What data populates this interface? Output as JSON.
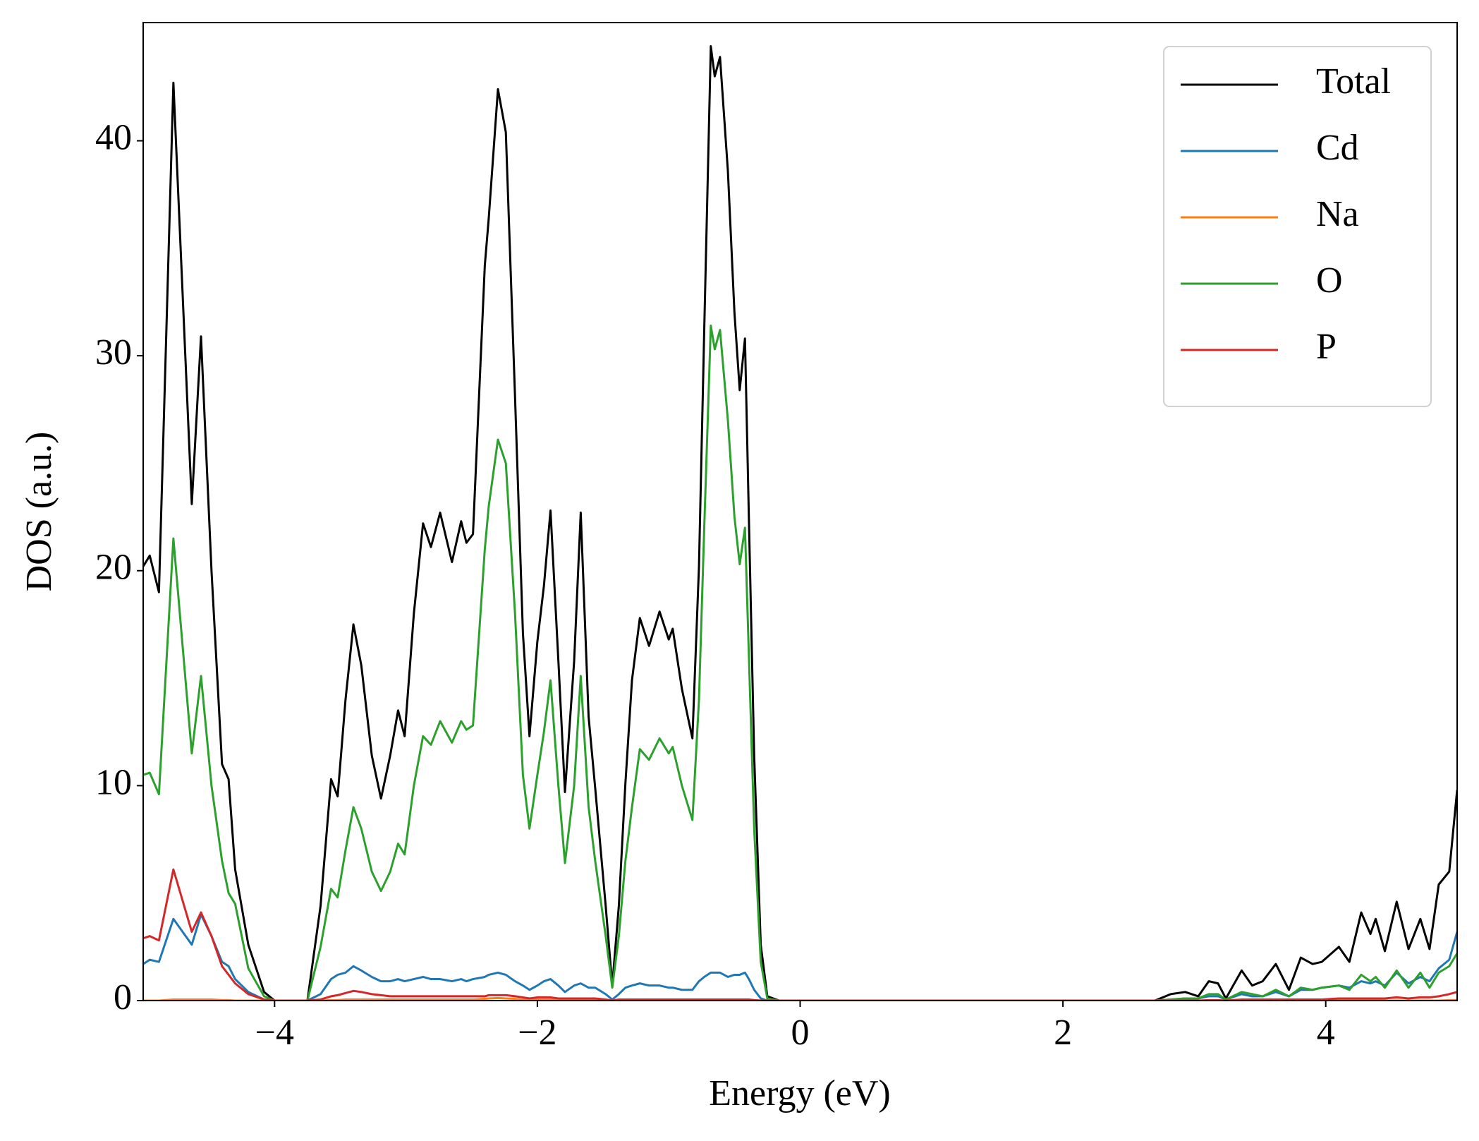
{
  "chart_data": {
    "type": "line",
    "xlabel": "Energy (eV)",
    "ylabel": "DOS (a.u.)",
    "xlim": [
      -5,
      5
    ],
    "ylim": [
      0,
      45.5
    ],
    "xticks": [
      {
        "value": -4,
        "label": "−4"
      },
      {
        "value": -2,
        "label": "−2"
      },
      0,
      2,
      4
    ],
    "yticks": [
      0,
      10,
      20,
      30,
      40
    ],
    "legend": "upper right",
    "grid": false,
    "x": [
      -5.0,
      -4.95,
      -4.88,
      -4.77,
      -4.63,
      -4.56,
      -4.48,
      -4.4,
      -4.35,
      -4.3,
      -4.2,
      -4.08,
      -4.0,
      -3.75,
      -3.65,
      -3.57,
      -3.52,
      -3.46,
      -3.4,
      -3.34,
      -3.26,
      -3.19,
      -3.12,
      -3.06,
      -3.01,
      -2.94,
      -2.87,
      -2.81,
      -2.74,
      -2.65,
      -2.58,
      -2.54,
      -2.49,
      -2.4,
      -2.37,
      -2.3,
      -2.24,
      -2.17,
      -2.11,
      -2.06,
      -2.0,
      -1.95,
      -1.9,
      -1.84,
      -1.79,
      -1.72,
      -1.67,
      -1.61,
      -1.56,
      -1.48,
      -1.43,
      -1.38,
      -1.33,
      -1.28,
      -1.22,
      -1.15,
      -1.07,
      -1.0,
      -0.97,
      -0.9,
      -0.82,
      -0.77,
      -0.73,
      -0.68,
      -0.65,
      -0.61,
      -0.55,
      -0.5,
      -0.46,
      -0.42,
      -0.39,
      -0.35,
      -0.3,
      -0.25,
      -0.16,
      2.7,
      2.82,
      2.93,
      3.03,
      3.11,
      3.18,
      3.24,
      3.36,
      3.44,
      3.52,
      3.62,
      3.72,
      3.81,
      3.9,
      3.97,
      4.1,
      4.18,
      4.27,
      4.34,
      4.38,
      4.45,
      4.54,
      4.63,
      4.72,
      4.79,
      4.86,
      4.94,
      5.0
    ],
    "series": [
      {
        "name": "Total",
        "color": "#000000",
        "values": [
          20.2,
          20.7,
          19.0,
          42.7,
          23.1,
          30.9,
          20,
          11,
          10.3,
          6.1,
          2.6,
          0.4,
          0,
          0,
          4.4,
          10.3,
          9.5,
          14,
          17.5,
          15.6,
          11.4,
          9.4,
          11.4,
          13.5,
          12.3,
          18,
          22.2,
          21.1,
          22.7,
          20.4,
          22.3,
          21.3,
          21.7,
          34.2,
          36.4,
          42.4,
          40.4,
          28.1,
          17.1,
          12.3,
          16.7,
          19.3,
          22.8,
          15.8,
          9.7,
          15.8,
          22.7,
          13.2,
          9.9,
          4.4,
          0.7,
          4.4,
          10.1,
          14.9,
          17.8,
          16.5,
          18.1,
          16.8,
          17.3,
          14.5,
          12.2,
          20.2,
          31.2,
          44.4,
          43.0,
          43.9,
          38.6,
          32,
          28.4,
          30.8,
          22.4,
          11.4,
          2.6,
          0.2,
          0,
          0,
          0.3,
          0.4,
          0.2,
          0.9,
          0.8,
          0.1,
          1.4,
          0.7,
          0.9,
          1.7,
          0.5,
          2.0,
          1.7,
          1.8,
          2.5,
          1.8,
          4.1,
          3.1,
          3.8,
          2.3,
          4.6,
          2.4,
          3.8,
          2.4,
          5.4,
          6.0,
          9.8
        ]
      },
      {
        "name": "Cd",
        "color": "#1f77b4",
        "values": [
          1.7,
          1.9,
          1.8,
          3.8,
          2.6,
          4.0,
          3,
          1.8,
          1.6,
          1.0,
          0.4,
          0.05,
          0,
          0,
          0.3,
          1.0,
          1.2,
          1.3,
          1.6,
          1.4,
          1.1,
          0.9,
          0.9,
          1.0,
          0.9,
          1.0,
          1.1,
          1.0,
          1.0,
          0.9,
          1.0,
          0.9,
          1.0,
          1.1,
          1.2,
          1.3,
          1.2,
          0.9,
          0.7,
          0.5,
          0.7,
          0.9,
          1.0,
          0.7,
          0.4,
          0.7,
          0.8,
          0.6,
          0.6,
          0.3,
          0.05,
          0.3,
          0.6,
          0.7,
          0.8,
          0.7,
          0.7,
          0.6,
          0.6,
          0.5,
          0.5,
          0.9,
          1.1,
          1.3,
          1.3,
          1.3,
          1.1,
          1.2,
          1.2,
          1.3,
          1.0,
          0.5,
          0.1,
          0,
          0,
          0,
          0.05,
          0.1,
          0.1,
          0.2,
          0.2,
          0.05,
          0.3,
          0.2,
          0.2,
          0.4,
          0.2,
          0.5,
          0.5,
          0.6,
          0.7,
          0.6,
          0.9,
          0.8,
          0.9,
          0.7,
          1.3,
          0.8,
          1.1,
          0.9,
          1.5,
          1.9,
          3.2
        ]
      },
      {
        "name": "Na",
        "color": "#ff7f0e",
        "values": [
          0,
          0,
          0,
          0.05,
          0.05,
          0.05,
          0.05,
          0.02,
          0.02,
          0,
          0,
          0,
          0,
          0,
          0,
          0.02,
          0.02,
          0.05,
          0.05,
          0.05,
          0.05,
          0.05,
          0.05,
          0.05,
          0.05,
          0.05,
          0.05,
          0.05,
          0.05,
          0.05,
          0.05,
          0.05,
          0.05,
          0.08,
          0.1,
          0.12,
          0.1,
          0.08,
          0.05,
          0.05,
          0.05,
          0.05,
          0.05,
          0.05,
          0.05,
          0.05,
          0.05,
          0.05,
          0.05,
          0.02,
          0,
          0.02,
          0.05,
          0.05,
          0.05,
          0.05,
          0.05,
          0.05,
          0.05,
          0.05,
          0.05,
          0.05,
          0.05,
          0.05,
          0.05,
          0.05,
          0.05,
          0.05,
          0.05,
          0.05,
          0.02,
          0.02,
          0,
          0,
          0,
          0,
          0,
          0,
          0,
          0,
          0,
          0,
          0,
          0,
          0,
          0,
          0,
          0,
          0,
          0,
          0,
          0,
          0,
          0,
          0,
          0,
          0,
          0,
          0,
          0,
          0,
          0.02,
          0.02
        ]
      },
      {
        "name": "O",
        "color": "#2ca02c",
        "values": [
          10.5,
          10.6,
          9.6,
          21.5,
          11.5,
          15.1,
          10,
          6.5,
          5,
          4.5,
          1.5,
          0.2,
          0,
          0,
          2.5,
          5.2,
          4.8,
          7,
          9,
          8,
          6,
          5.1,
          6,
          7.3,
          6.8,
          10,
          12.3,
          11.9,
          13.0,
          12.0,
          13.0,
          12.6,
          12.8,
          21,
          23,
          26.1,
          25,
          18,
          10.5,
          8,
          10.5,
          12.5,
          14.9,
          10,
          6.4,
          10,
          15.1,
          9,
          6.5,
          3,
          0.6,
          3,
          6.5,
          9,
          11.7,
          11.2,
          12.2,
          11.5,
          11.8,
          10,
          8.4,
          14,
          22,
          31.4,
          30.3,
          31.2,
          27,
          22.5,
          20.3,
          22.0,
          16,
          8,
          1.8,
          0.1,
          0,
          0,
          0.05,
          0.1,
          0.1,
          0.3,
          0.3,
          0.05,
          0.4,
          0.3,
          0.2,
          0.5,
          0.2,
          0.6,
          0.5,
          0.6,
          0.7,
          0.5,
          1.2,
          0.9,
          1.1,
          0.6,
          1.4,
          0.6,
          1.3,
          0.6,
          1.3,
          1.6,
          2.2
        ]
      },
      {
        "name": "P",
        "color": "#d62728",
        "values": [
          2.9,
          3.0,
          2.8,
          6.1,
          3.2,
          4.1,
          3,
          1.6,
          1.2,
          0.8,
          0.3,
          0.05,
          0,
          0,
          0.05,
          0.2,
          0.25,
          0.35,
          0.45,
          0.4,
          0.3,
          0.25,
          0.2,
          0.2,
          0.2,
          0.2,
          0.2,
          0.2,
          0.2,
          0.2,
          0.2,
          0.2,
          0.2,
          0.2,
          0.25,
          0.25,
          0.25,
          0.2,
          0.15,
          0.1,
          0.15,
          0.15,
          0.15,
          0.1,
          0.1,
          0.1,
          0.1,
          0.1,
          0.1,
          0.05,
          0,
          0.05,
          0.05,
          0.05,
          0.05,
          0.05,
          0.05,
          0.05,
          0.05,
          0.05,
          0.05,
          0.05,
          0.05,
          0.05,
          0.05,
          0.05,
          0.05,
          0.05,
          0.05,
          0.05,
          0.05,
          0.02,
          0,
          0,
          0,
          0,
          0,
          0,
          0,
          0.02,
          0.02,
          0,
          0.05,
          0.05,
          0.05,
          0.05,
          0.05,
          0.05,
          0.05,
          0.05,
          0.1,
          0.1,
          0.1,
          0.1,
          0.1,
          0.1,
          0.15,
          0.1,
          0.15,
          0.15,
          0.2,
          0.3,
          0.4
        ]
      }
    ]
  }
}
